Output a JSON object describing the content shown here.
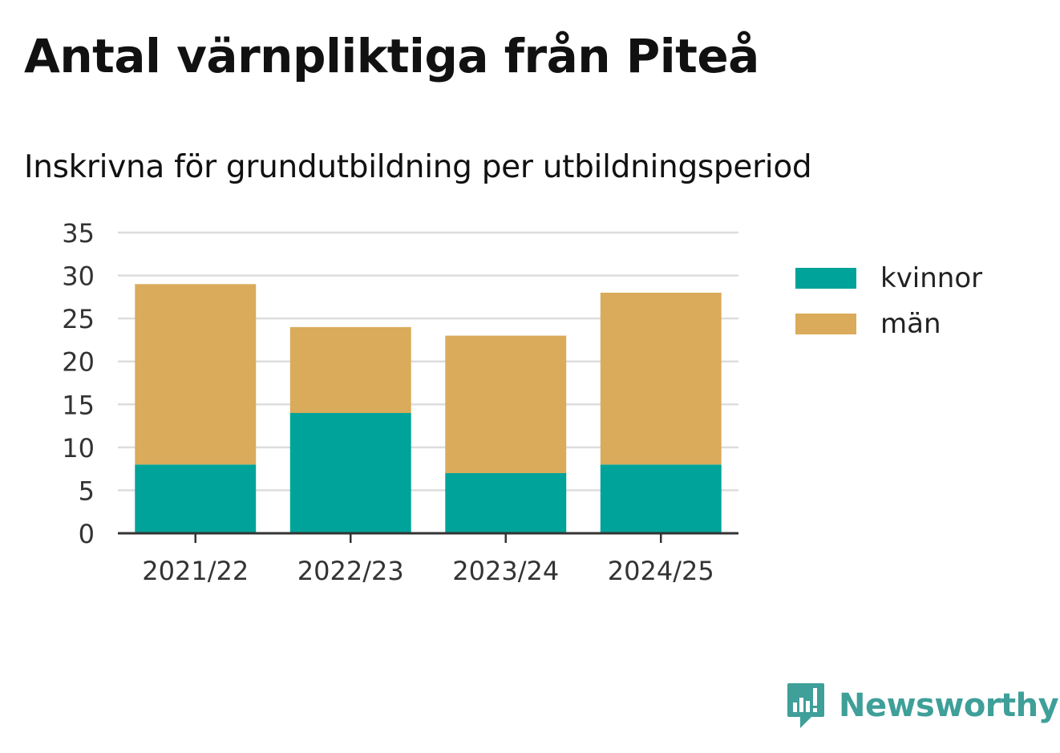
{
  "title": "Antal värnpliktiga från Piteå",
  "subtitle": "Inskrivna för grundutbildning per utbildningsperiod",
  "brand": {
    "name": "Newsworthy",
    "icon": "newsworthy-logo-icon",
    "color": "#3f9f99"
  },
  "colors": {
    "kvinnor": "#00a39a",
    "man": "#d9ab5a",
    "grid": "#dddddd",
    "axis": "#333333"
  },
  "chart_data": {
    "type": "bar",
    "stacked": true,
    "categories": [
      "2021/22",
      "2022/23",
      "2023/24",
      "2024/25"
    ],
    "series": [
      {
        "name": "kvinnor",
        "values": [
          8,
          14,
          7,
          8
        ],
        "color": "#00a39a"
      },
      {
        "name": "män",
        "values": [
          21,
          10,
          16,
          20
        ],
        "color": "#d9ab5a"
      }
    ],
    "ylim": [
      0,
      35
    ],
    "yticks": [
      0,
      5,
      10,
      15,
      20,
      25,
      30,
      35
    ],
    "grid": true,
    "legend": "right",
    "xlabel": "",
    "ylabel": ""
  }
}
